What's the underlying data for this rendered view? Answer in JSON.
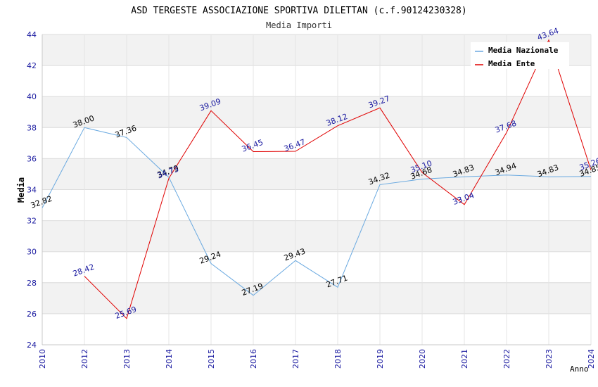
{
  "chart_data": {
    "type": "line",
    "title": "ASD TERGESTE ASSOCIAZIONE SPORTIVA DILETTAN (c.f.90124230328)",
    "subtitle": "Media Importi",
    "xlabel": "Anno",
    "ylabel": "Media",
    "ylim": [
      24,
      44
    ],
    "y_ticks": [
      "24",
      "26",
      "28",
      "30",
      "32",
      "34",
      "36",
      "38",
      "40",
      "42",
      "44"
    ],
    "categories": [
      "2010",
      "2012",
      "2013",
      "2014",
      "2015",
      "2016",
      "2017",
      "2018",
      "2019",
      "2020",
      "2021",
      "2022",
      "2023",
      "2024"
    ],
    "grid": true,
    "legend_position": "top-right",
    "series": [
      {
        "name": "Media Nazionale",
        "color": "#6aa9e0",
        "label_color": "#000000",
        "values": [
          32.82,
          38.0,
          37.36,
          34.79,
          29.24,
          27.19,
          29.43,
          27.71,
          34.32,
          34.68,
          34.83,
          34.94,
          34.83,
          34.85
        ],
        "labels": [
          "32.82",
          "38.00",
          "37.36",
          "34.79",
          "29.24",
          "27.19",
          "29.43",
          "27.71",
          "34.32",
          "34.68",
          "34.83",
          "34.94",
          "34.83",
          "34.85"
        ]
      },
      {
        "name": "Media Ente",
        "color": "#e00000",
        "label_color": "#1a1aa0",
        "values": [
          null,
          28.42,
          25.69,
          34.73,
          39.09,
          36.45,
          36.47,
          38.12,
          39.27,
          35.1,
          33.04,
          37.68,
          43.64,
          35.26
        ],
        "labels": [
          null,
          "28.42",
          "25.69",
          "34.73",
          "39.09",
          "36.45",
          "36.47",
          "38.12",
          "39.27",
          "35.10",
          "33.04",
          "37.68",
          "43.64",
          "35.26"
        ]
      }
    ]
  }
}
